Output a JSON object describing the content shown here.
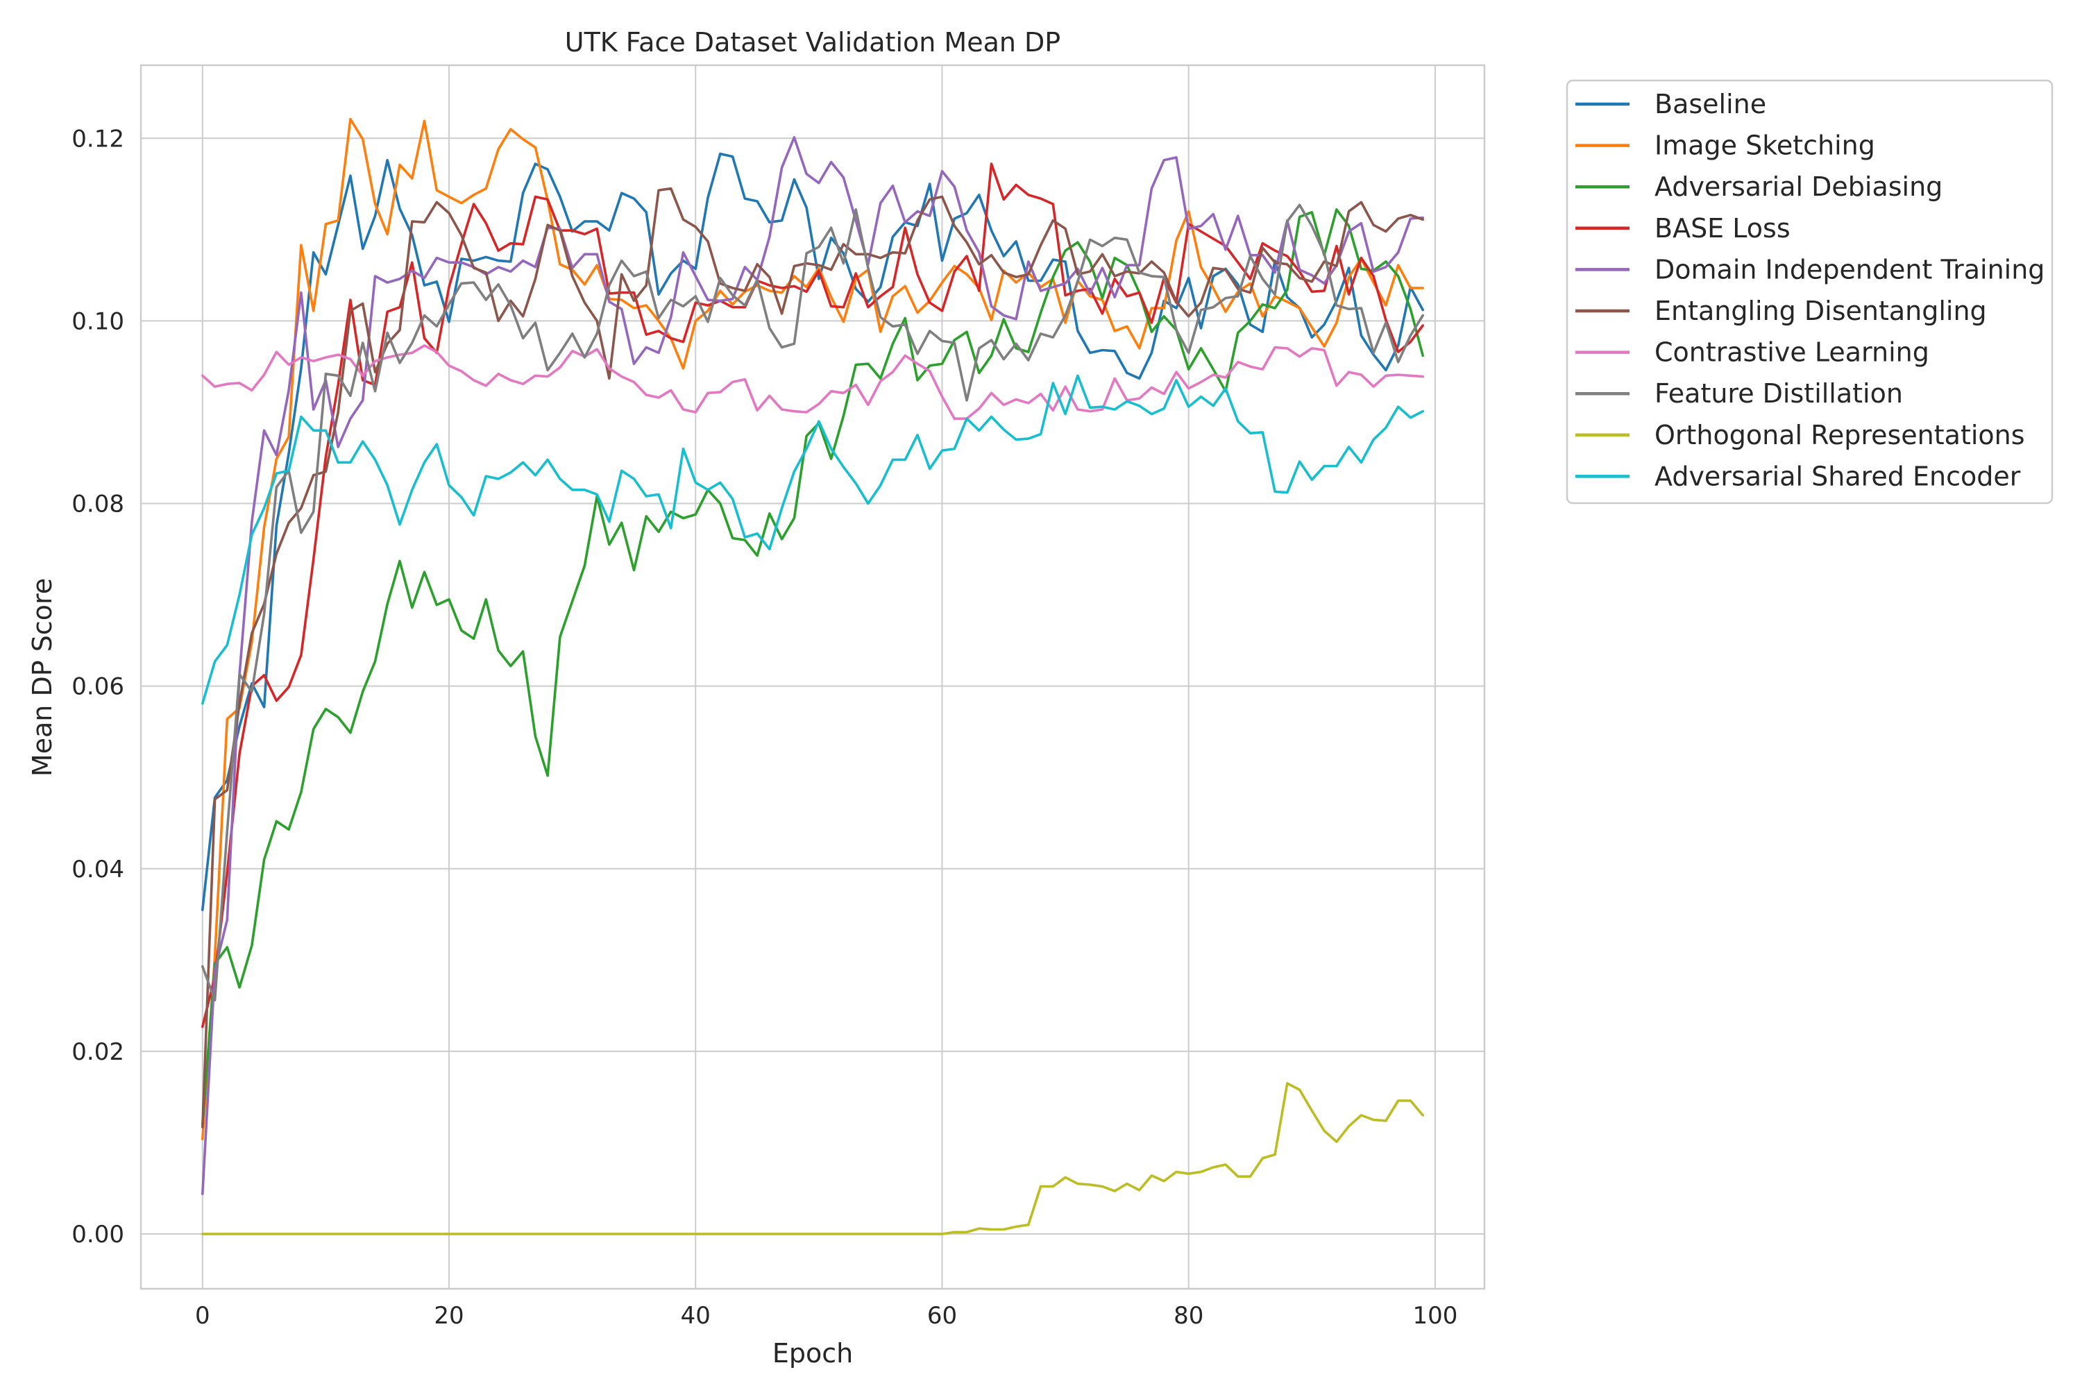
{
  "chart_data": {
    "type": "line",
    "title": "UTK Face Dataset Validation Mean DP",
    "xlabel": "Epoch",
    "ylabel": "Mean DP Score",
    "xlim": [
      -5,
      104
    ],
    "ylim": [
      -0.006,
      0.128
    ],
    "xticks": [
      0,
      20,
      40,
      60,
      80,
      100
    ],
    "yticks": [
      0.0,
      0.02,
      0.04,
      0.06,
      0.08,
      0.1,
      0.12
    ],
    "xtick_labels": [
      "0",
      "20",
      "40",
      "60",
      "80",
      "100"
    ],
    "ytick_labels": [
      "0.00",
      "0.02",
      "0.04",
      "0.06",
      "0.08",
      "0.10",
      "0.12"
    ],
    "grid": true,
    "legend_placement": "outside-upper-right",
    "series": [
      {
        "name": "Baseline",
        "color": "#1f77b4",
        "values": [
          0.0355,
          0.0478,
          0.0497,
          0.0556,
          0.0603,
          0.0577,
          0.0776,
          0.0855,
          0.0948,
          0.1075,
          0.1051,
          0.1105,
          0.1159,
          0.1079,
          0.1115,
          0.1176,
          0.1123,
          0.1094,
          0.1039,
          0.1043,
          0.0999,
          0.1068,
          0.1066,
          0.107,
          0.1066,
          0.1065,
          0.114,
          0.1172,
          0.1166,
          0.1136,
          0.1098,
          0.1109,
          0.1109,
          0.1099,
          0.114,
          0.1134,
          0.1119,
          0.1029,
          0.1052,
          0.1066,
          0.1057,
          0.1135,
          0.1183,
          0.118,
          0.1134,
          0.1131,
          0.1108,
          0.111,
          0.1155,
          0.1124,
          0.1046,
          0.1091,
          0.1074,
          0.1035,
          0.1021,
          0.1037,
          0.1092,
          0.1108,
          0.1104,
          0.115,
          0.1066,
          0.1112,
          0.1118,
          0.1138,
          0.1099,
          0.1071,
          0.1087,
          0.1044,
          0.1044,
          0.1067,
          0.1065,
          0.0989,
          0.0965,
          0.0968,
          0.0967,
          0.0943,
          0.0937,
          0.0965,
          0.1022,
          0.1014,
          0.1047,
          0.0992,
          0.1049,
          0.1057,
          0.104,
          0.0996,
          0.0988,
          0.1066,
          0.1026,
          0.1014,
          0.0982,
          0.0996,
          0.1022,
          0.1058,
          0.0984,
          0.0963,
          0.0946,
          0.0973,
          0.1037,
          0.1012
        ]
      },
      {
        "name": "Image Sketching",
        "color": "#ff7f0e",
        "values": [
          0.0104,
          0.0304,
          0.0564,
          0.0576,
          0.0648,
          0.0774,
          0.0849,
          0.0873,
          0.1083,
          0.1011,
          0.1106,
          0.111,
          0.1221,
          0.1199,
          0.1128,
          0.1095,
          0.1171,
          0.1156,
          0.1219,
          0.1143,
          0.1136,
          0.1129,
          0.1138,
          0.1145,
          0.1188,
          0.121,
          0.1199,
          0.119,
          0.1132,
          0.1062,
          0.1056,
          0.104,
          0.1061,
          0.1024,
          0.1023,
          0.1014,
          0.1017,
          0.1,
          0.0981,
          0.0948,
          0.1,
          0.1011,
          0.1033,
          0.1018,
          0.1032,
          0.1039,
          0.1033,
          0.1031,
          0.1049,
          0.1037,
          0.1058,
          0.1026,
          0.0999,
          0.1046,
          0.1056,
          0.0988,
          0.1027,
          0.1038,
          0.1009,
          0.1022,
          0.1042,
          0.106,
          0.1051,
          0.1036,
          0.1001,
          0.1055,
          0.1042,
          0.1053,
          0.1037,
          0.1046,
          0.0998,
          0.1044,
          0.1027,
          0.1023,
          0.0989,
          0.0994,
          0.097,
          0.1014,
          0.1014,
          0.1088,
          0.112,
          0.1059,
          0.1036,
          0.101,
          0.1032,
          0.1041,
          0.1005,
          0.1027,
          0.1021,
          0.1014,
          0.0993,
          0.0972,
          0.0998,
          0.1048,
          0.1068,
          0.1042,
          0.1017,
          0.1061,
          0.1036,
          0.1036
        ]
      },
      {
        "name": "Adversarial Debiasing",
        "color": "#2ca02c",
        "values": [
          0.012,
          0.0296,
          0.0314,
          0.027,
          0.0316,
          0.041,
          0.0452,
          0.0443,
          0.0484,
          0.0553,
          0.0575,
          0.0566,
          0.0549,
          0.0594,
          0.0627,
          0.069,
          0.0737,
          0.0686,
          0.0725,
          0.0689,
          0.0695,
          0.0661,
          0.0652,
          0.0695,
          0.0639,
          0.0622,
          0.0638,
          0.0545,
          0.0502,
          0.0654,
          0.0693,
          0.0732,
          0.0808,
          0.0755,
          0.0779,
          0.0727,
          0.0786,
          0.0769,
          0.0791,
          0.0784,
          0.0788,
          0.0815,
          0.08,
          0.0762,
          0.076,
          0.0743,
          0.0789,
          0.0761,
          0.0784,
          0.0874,
          0.0888,
          0.0849,
          0.0896,
          0.0952,
          0.0953,
          0.0937,
          0.0975,
          0.1003,
          0.0935,
          0.0951,
          0.0953,
          0.0979,
          0.0988,
          0.0943,
          0.0962,
          0.1002,
          0.097,
          0.0966,
          0.1009,
          0.1048,
          0.1077,
          0.1086,
          0.1065,
          0.1025,
          0.1069,
          0.1061,
          0.1031,
          0.0988,
          0.1005,
          0.099,
          0.0947,
          0.097,
          0.0947,
          0.0923,
          0.0987,
          0.1,
          0.1018,
          0.1014,
          0.1034,
          0.1114,
          0.1119,
          0.1072,
          0.1122,
          0.1104,
          0.1057,
          0.1055,
          0.1065,
          0.1049,
          0.1013,
          0.0962
        ]
      },
      {
        "name": "BASE Loss",
        "color": "#d62728",
        "values": [
          0.0227,
          0.0282,
          0.0396,
          0.0526,
          0.06,
          0.0612,
          0.0584,
          0.0599,
          0.0634,
          0.0739,
          0.0851,
          0.093,
          0.1023,
          0.0935,
          0.093,
          0.101,
          0.1015,
          0.1064,
          0.0981,
          0.0965,
          0.1037,
          0.1084,
          0.1128,
          0.1107,
          0.1077,
          0.1085,
          0.1084,
          0.1136,
          0.1133,
          0.1099,
          0.1099,
          0.1095,
          0.1101,
          0.103,
          0.1031,
          0.1031,
          0.0985,
          0.0989,
          0.0981,
          0.0977,
          0.102,
          0.1017,
          0.1022,
          0.1015,
          0.1015,
          0.1044,
          0.1039,
          0.1036,
          0.1038,
          0.1032,
          0.1055,
          0.1016,
          0.1015,
          0.1052,
          0.1015,
          0.1027,
          0.1037,
          0.1102,
          0.1051,
          0.102,
          0.1011,
          0.1054,
          0.1071,
          0.1033,
          0.1172,
          0.1133,
          0.1149,
          0.1138,
          0.1134,
          0.1128,
          0.1028,
          0.1033,
          0.1035,
          0.1008,
          0.1046,
          0.1027,
          0.1031,
          0.0998,
          0.1047,
          0.102,
          0.1106,
          0.1098,
          0.109,
          0.1082,
          0.1064,
          0.1046,
          0.1085,
          0.1077,
          0.1071,
          0.1054,
          0.1032,
          0.1033,
          0.1082,
          0.1029,
          0.1069,
          0.1049,
          0.1001,
          0.0966,
          0.0977,
          0.0995
        ]
      },
      {
        "name": "Domain Independent Training",
        "color": "#9467bd",
        "values": [
          0.0044,
          0.0289,
          0.0344,
          0.0613,
          0.078,
          0.088,
          0.0853,
          0.0924,
          0.1031,
          0.0903,
          0.0935,
          0.0862,
          0.0893,
          0.0913,
          0.1049,
          0.1042,
          0.1046,
          0.1055,
          0.1047,
          0.1069,
          0.1064,
          0.1064,
          0.1059,
          0.1051,
          0.1059,
          0.1054,
          0.1066,
          0.1059,
          0.1102,
          0.1101,
          0.1058,
          0.1073,
          0.1073,
          0.1021,
          0.1013,
          0.0953,
          0.0971,
          0.0965,
          0.1004,
          0.1075,
          0.1049,
          0.1023,
          0.1022,
          0.1024,
          0.1059,
          0.1045,
          0.1092,
          0.1168,
          0.1201,
          0.1161,
          0.1151,
          0.1174,
          0.1157,
          0.111,
          0.1062,
          0.1129,
          0.1148,
          0.1108,
          0.112,
          0.1115,
          0.1164,
          0.1147,
          0.1099,
          0.1075,
          0.1016,
          0.1006,
          0.1002,
          0.1065,
          0.1033,
          0.1037,
          0.1041,
          0.1057,
          0.103,
          0.1058,
          0.1026,
          0.1061,
          0.1061,
          0.1145,
          0.1176,
          0.1179,
          0.1101,
          0.1104,
          0.1117,
          0.1078,
          0.1115,
          0.1072,
          0.1072,
          0.1053,
          0.111,
          0.1056,
          0.105,
          0.1041,
          0.1061,
          0.1098,
          0.1107,
          0.1054,
          0.1059,
          0.1075,
          0.1112,
          0.1113
        ]
      },
      {
        "name": "Entangling Disentangling",
        "color": "#8c564b",
        "values": [
          0.0117,
          0.0476,
          0.0486,
          0.0581,
          0.0658,
          0.069,
          0.0745,
          0.0779,
          0.0795,
          0.0831,
          0.0835,
          0.09,
          0.1011,
          0.1019,
          0.0944,
          0.0975,
          0.099,
          0.1109,
          0.1108,
          0.113,
          0.1118,
          0.1094,
          0.1058,
          0.1053,
          0.1,
          0.1022,
          0.1005,
          0.1046,
          0.1105,
          0.1099,
          0.1049,
          0.102,
          0.1,
          0.0937,
          0.1051,
          0.1022,
          0.1039,
          0.1143,
          0.1145,
          0.1111,
          0.1103,
          0.1087,
          0.1041,
          0.1036,
          0.1033,
          0.1062,
          0.1048,
          0.1008,
          0.106,
          0.1063,
          0.1061,
          0.1056,
          0.1084,
          0.1073,
          0.1073,
          0.1069,
          0.1075,
          0.1074,
          0.111,
          0.1133,
          0.1136,
          0.1104,
          0.1086,
          0.1062,
          0.1072,
          0.1053,
          0.1048,
          0.1051,
          0.1083,
          0.111,
          0.1101,
          0.1051,
          0.1054,
          0.1073,
          0.1049,
          0.1054,
          0.1052,
          0.1065,
          0.1053,
          0.1021,
          0.1005,
          0.102,
          0.1058,
          0.1056,
          0.1035,
          0.1031,
          0.108,
          0.1064,
          0.1062,
          0.1047,
          0.1043,
          0.1065,
          0.106,
          0.112,
          0.113,
          0.1105,
          0.1098,
          0.1112,
          0.1116,
          0.1111
        ]
      },
      {
        "name": "Contrastive Learning",
        "color": "#e377c2",
        "values": [
          0.094,
          0.0928,
          0.0931,
          0.0932,
          0.0924,
          0.0941,
          0.0966,
          0.0952,
          0.096,
          0.0956,
          0.096,
          0.0963,
          0.0958,
          0.094,
          0.0956,
          0.096,
          0.0963,
          0.0965,
          0.0973,
          0.0966,
          0.0951,
          0.0945,
          0.0935,
          0.0929,
          0.0942,
          0.0935,
          0.0931,
          0.094,
          0.0939,
          0.0949,
          0.0967,
          0.0961,
          0.0969,
          0.0948,
          0.0939,
          0.0933,
          0.0919,
          0.0916,
          0.0924,
          0.0903,
          0.09,
          0.0921,
          0.0922,
          0.0933,
          0.0936,
          0.0902,
          0.0918,
          0.0903,
          0.0901,
          0.09,
          0.0909,
          0.0923,
          0.0921,
          0.093,
          0.0908,
          0.0934,
          0.0944,
          0.0962,
          0.0953,
          0.0945,
          0.0917,
          0.0893,
          0.0893,
          0.0904,
          0.0921,
          0.0908,
          0.0914,
          0.091,
          0.092,
          0.0902,
          0.0928,
          0.0903,
          0.0901,
          0.0903,
          0.0937,
          0.0913,
          0.0915,
          0.0927,
          0.092,
          0.0944,
          0.0926,
          0.0933,
          0.0941,
          0.0938,
          0.0955,
          0.095,
          0.0947,
          0.0971,
          0.097,
          0.0961,
          0.097,
          0.0968,
          0.0929,
          0.0944,
          0.0941,
          0.0928,
          0.094,
          0.0941,
          0.094,
          0.0939
        ]
      },
      {
        "name": "Feature Distillation",
        "color": "#7f7f7f",
        "values": [
          0.0293,
          0.0256,
          0.0441,
          0.0613,
          0.0594,
          0.0679,
          0.0818,
          0.0836,
          0.0768,
          0.0791,
          0.0942,
          0.094,
          0.0918,
          0.0976,
          0.0923,
          0.0987,
          0.0954,
          0.0976,
          0.1006,
          0.0994,
          0.1018,
          0.1041,
          0.1042,
          0.1023,
          0.104,
          0.1017,
          0.0981,
          0.0998,
          0.0946,
          0.0965,
          0.0986,
          0.096,
          0.0986,
          0.1039,
          0.1066,
          0.1049,
          0.1054,
          0.1003,
          0.1023,
          0.1016,
          0.1027,
          0.0999,
          0.1047,
          0.1028,
          0.1017,
          0.1045,
          0.0992,
          0.0971,
          0.0975,
          0.1074,
          0.1081,
          0.1102,
          0.1063,
          0.1122,
          0.1058,
          0.1004,
          0.0994,
          0.0996,
          0.0964,
          0.0989,
          0.0978,
          0.0976,
          0.0913,
          0.097,
          0.0979,
          0.0958,
          0.0975,
          0.0957,
          0.0986,
          0.0982,
          0.1006,
          0.1043,
          0.1089,
          0.1082,
          0.1091,
          0.1089,
          0.1053,
          0.1049,
          0.1048,
          0.099,
          0.0965,
          0.1012,
          0.1015,
          0.1025,
          0.1027,
          0.1071,
          0.1046,
          0.1029,
          0.1109,
          0.1127,
          0.1104,
          0.1074,
          0.1017,
          0.1013,
          0.1014,
          0.0965,
          0.0998,
          0.0955,
          0.0984,
          0.1006
        ]
      },
      {
        "name": "Orthogonal Representations",
        "color": "#bcbd22",
        "values": [
          0.0,
          0.0,
          0.0,
          0.0,
          0.0,
          0.0,
          0.0,
          0.0,
          0.0,
          0.0,
          0.0,
          0.0,
          0.0,
          0.0,
          0.0,
          0.0,
          0.0,
          0.0,
          0.0,
          0.0,
          0.0,
          0.0,
          0.0,
          0.0,
          0.0,
          0.0,
          0.0,
          0.0,
          0.0,
          0.0,
          0.0,
          0.0,
          0.0,
          0.0,
          0.0,
          0.0,
          0.0,
          0.0,
          0.0,
          0.0,
          0.0,
          0.0,
          0.0,
          0.0,
          0.0,
          0.0,
          0.0,
          0.0,
          0.0,
          0.0,
          0.0,
          0.0,
          0.0,
          0.0,
          0.0,
          0.0,
          0.0,
          0.0,
          0.0,
          0.0,
          0.0,
          0.0002,
          0.0002,
          0.0006,
          0.0005,
          0.0005,
          0.0008,
          0.001,
          0.0052,
          0.0052,
          0.0062,
          0.0055,
          0.0054,
          0.0052,
          0.0047,
          0.0055,
          0.0048,
          0.0064,
          0.0058,
          0.0068,
          0.0066,
          0.0068,
          0.0073,
          0.0076,
          0.0063,
          0.0063,
          0.0083,
          0.0087,
          0.0165,
          0.0158,
          0.0135,
          0.0113,
          0.0101,
          0.0118,
          0.013,
          0.0125,
          0.0124,
          0.0146,
          0.0146,
          0.013
        ]
      },
      {
        "name": "Adversarial Shared Encoder",
        "color": "#17becf",
        "values": [
          0.0581,
          0.0627,
          0.0645,
          0.07,
          0.0766,
          0.0795,
          0.0833,
          0.0836,
          0.0895,
          0.088,
          0.088,
          0.0845,
          0.0845,
          0.0868,
          0.0848,
          0.082,
          0.0777,
          0.0815,
          0.0845,
          0.0865,
          0.082,
          0.0807,
          0.0787,
          0.083,
          0.0827,
          0.0834,
          0.0845,
          0.0831,
          0.0848,
          0.0827,
          0.0815,
          0.0815,
          0.081,
          0.078,
          0.0836,
          0.0827,
          0.0808,
          0.081,
          0.0773,
          0.086,
          0.0823,
          0.0815,
          0.0823,
          0.0805,
          0.0763,
          0.0767,
          0.075,
          0.0795,
          0.0835,
          0.086,
          0.089,
          0.086,
          0.084,
          0.0822,
          0.08,
          0.082,
          0.0848,
          0.0848,
          0.0875,
          0.0838,
          0.0858,
          0.086,
          0.0893,
          0.088,
          0.0895,
          0.0881,
          0.087,
          0.0871,
          0.0876,
          0.0932,
          0.0898,
          0.094,
          0.0905,
          0.0906,
          0.0903,
          0.0912,
          0.0907,
          0.0898,
          0.0904,
          0.0935,
          0.0906,
          0.0917,
          0.0907,
          0.0926,
          0.089,
          0.0877,
          0.0878,
          0.0813,
          0.0812,
          0.0846,
          0.0826,
          0.0841,
          0.0841,
          0.0862,
          0.0845,
          0.087,
          0.0883,
          0.0906,
          0.0894,
          0.0901
        ]
      }
    ]
  }
}
